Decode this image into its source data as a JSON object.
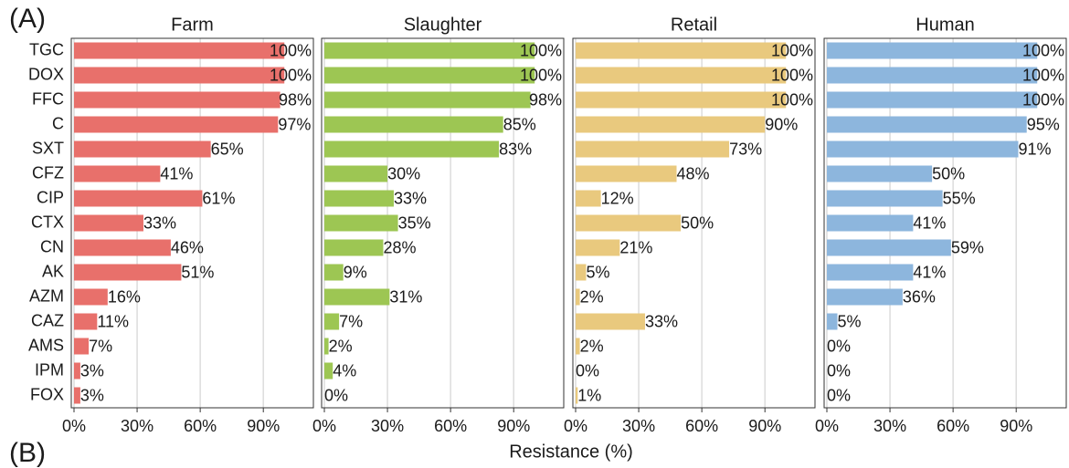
{
  "chart_data": {
    "type": "bar",
    "orientation": "horizontal",
    "panel_labels": [
      "(A)",
      "(B)"
    ],
    "xlabel": "Resistance (%)",
    "categories": [
      "TGC",
      "DOX",
      "FFC",
      "C",
      "SXT",
      "CFZ",
      "CIP",
      "CTX",
      "CN",
      "AK",
      "AZM",
      "CAZ",
      "AMS",
      "IPM",
      "FOX"
    ],
    "xlim": [
      -1.3,
      113.8
    ],
    "xticks": [
      {
        "value": 0,
        "label": "0%"
      },
      {
        "value": 30,
        "label": "30%"
      },
      {
        "value": 60,
        "label": "60%"
      },
      {
        "value": 90,
        "label": "90%"
      }
    ],
    "grid": true,
    "series": [
      {
        "name": "Farm",
        "color": "#e8706b",
        "values": [
          100,
          100,
          98,
          97,
          65,
          41,
          61,
          33,
          46,
          51,
          16,
          11,
          7,
          3,
          3
        ],
        "value_labels": [
          "100%",
          "100%",
          "98%",
          "97%",
          "65%",
          "41%",
          "61%",
          "33%",
          "46%",
          "51%",
          "16%",
          "11%",
          "7%",
          "3%",
          "3%"
        ]
      },
      {
        "name": "Slaughter",
        "color": "#9dc653",
        "values": [
          100,
          100,
          98,
          85,
          83,
          30,
          33,
          35,
          28,
          9,
          31,
          7,
          2,
          4,
          0
        ],
        "value_labels": [
          "100%",
          "100%",
          "98%",
          "85%",
          "83%",
          "30%",
          "33%",
          "35%",
          "28%",
          "9%",
          "31%",
          "7%",
          "2%",
          "4%",
          "0%"
        ]
      },
      {
        "name": "Retail",
        "color": "#e9c97e",
        "values": [
          100,
          100,
          100,
          90,
          73,
          48,
          12,
          50,
          21,
          5,
          2,
          33,
          2,
          0,
          1
        ],
        "value_labels": [
          "100%",
          "100%",
          "100%",
          "90%",
          "73%",
          "48%",
          "12%",
          "50%",
          "21%",
          "5%",
          "2%",
          "33%",
          "2%",
          "0%",
          "1%"
        ]
      },
      {
        "name": "Human",
        "color": "#8db6dd",
        "values": [
          100,
          100,
          100,
          95,
          91,
          50,
          55,
          41,
          59,
          41,
          36,
          5,
          0,
          0,
          0
        ],
        "value_labels": [
          "100%",
          "100%",
          "100%",
          "95%",
          "91%",
          "50%",
          "55%",
          "41%",
          "59%",
          "41%",
          "36%",
          "5%",
          "0%",
          "0%",
          "0%"
        ]
      }
    ]
  }
}
